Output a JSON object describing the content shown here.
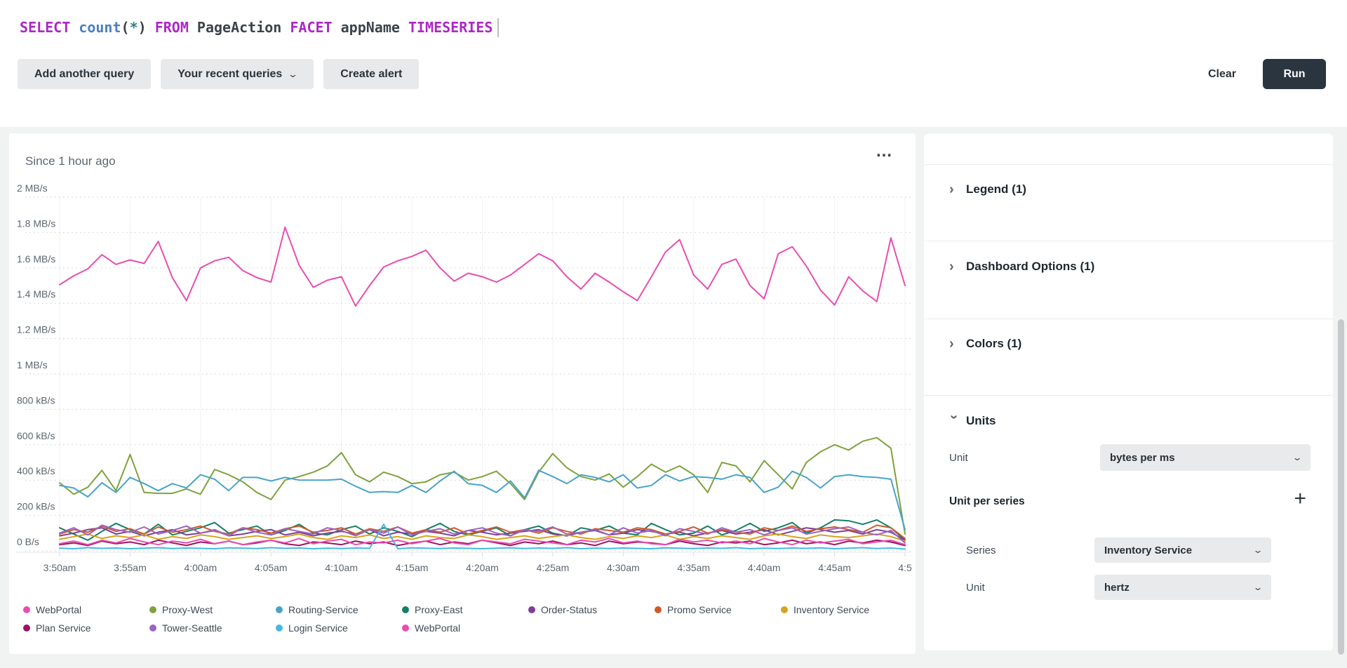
{
  "query": {
    "tokens": [
      {
        "t": "SELECT",
        "c": "keyword"
      },
      {
        "t": " ",
        "c": "plain"
      },
      {
        "t": "count",
        "c": "func"
      },
      {
        "t": "(",
        "c": "plain"
      },
      {
        "t": "*",
        "c": "star"
      },
      {
        "t": ")",
        "c": "plain"
      },
      {
        "t": " ",
        "c": "plain"
      },
      {
        "t": "FROM",
        "c": "keyword"
      },
      {
        "t": " PageAction ",
        "c": "plain"
      },
      {
        "t": "FACET",
        "c": "keyword"
      },
      {
        "t": " appName ",
        "c": "plain"
      },
      {
        "t": "TIMESERIES",
        "c": "keyword"
      }
    ],
    "syntax_colors": {
      "keyword": "#ab28c4",
      "func": "#4d7fc0",
      "star": "#2e8087",
      "plain": "#3c434a"
    }
  },
  "toolbar": {
    "add_query": "Add another query",
    "recent_queries": "Your recent queries",
    "create_alert": "Create alert",
    "clear": "Clear",
    "run": "Run"
  },
  "chart_panel": {
    "time_range": "Since 1 hour ago",
    "menu_glyph": "…"
  },
  "chart_data": {
    "type": "line",
    "title": "Since 1 hour ago",
    "y_unit": "kB/s",
    "ylim": [
      0,
      2000
    ],
    "grid": true,
    "legend_position": "bottom",
    "y_tick_labels": [
      "2 MB/s",
      "1.8 MB/s",
      "1.6 MB/s",
      "1.4 MB/s",
      "1.2 MB/s",
      "1 MB/s",
      "800 kB/s",
      "600 kB/s",
      "400 kB/s",
      "200 kB/s",
      "0 B/s"
    ],
    "x_ticks": [
      "3:50am",
      "3:55am",
      "4:00am",
      "4:05am",
      "4:10am",
      "4:15am",
      "4:20am",
      "4:25am",
      "4:30am",
      "4:35am",
      "4:40am",
      "4:45am",
      "4:5"
    ],
    "series": [
      {
        "name": "WebPortal",
        "color": "#e84db0",
        "values": [
          1505,
          1555,
          1595,
          1675,
          1620,
          1645,
          1625,
          1750,
          1545,
          1415,
          1600,
          1640,
          1660,
          1585,
          1545,
          1520,
          1830,
          1615,
          1490,
          1530,
          1550,
          1385,
          1500,
          1605,
          1640,
          1665,
          1700,
          1600,
          1525,
          1570,
          1550,
          1520,
          1560,
          1620,
          1680,
          1640,
          1550,
          1480,
          1570,
          1520,
          1465,
          1415,
          1550,
          1690,
          1760,
          1560,
          1480,
          1620,
          1650,
          1500,
          1425,
          1680,
          1720,
          1610,
          1475,
          1390,
          1550,
          1470,
          1410,
          1770,
          1500
        ]
      },
      {
        "name": "Proxy-West",
        "color": "#7fa23c",
        "values": [
          385,
          320,
          360,
          455,
          340,
          545,
          330,
          325,
          325,
          350,
          320,
          460,
          430,
          390,
          330,
          290,
          400,
          420,
          445,
          480,
          555,
          430,
          390,
          445,
          420,
          380,
          390,
          430,
          445,
          400,
          420,
          450,
          380,
          290,
          445,
          550,
          470,
          420,
          400,
          435,
          360,
          420,
          490,
          445,
          480,
          430,
          330,
          500,
          480,
          390,
          510,
          430,
          350,
          500,
          560,
          600,
          570,
          620,
          640,
          580,
          95
        ]
      },
      {
        "name": "Routing-Service",
        "color": "#48a4c9",
        "values": [
          370,
          355,
          305,
          385,
          330,
          415,
          380,
          340,
          380,
          355,
          430,
          405,
          340,
          415,
          415,
          395,
          415,
          400,
          400,
          400,
          405,
          365,
          330,
          335,
          330,
          370,
          330,
          395,
          450,
          380,
          370,
          330,
          395,
          300,
          455,
          420,
          380,
          430,
          415,
          390,
          430,
          355,
          370,
          430,
          395,
          420,
          415,
          405,
          430,
          415,
          330,
          360,
          450,
          415,
          355,
          420,
          430,
          420,
          415,
          405,
          120
        ]
      },
      {
        "name": "Proxy-East",
        "color": "#177e66",
        "values": [
          130,
          95,
          60,
          110,
          155,
          120,
          95,
          150,
          90,
          110,
          130,
          160,
          100,
          120,
          140,
          90,
          115,
          150,
          100,
          90,
          120,
          140,
          95,
          130,
          110,
          80,
          120,
          155,
          110,
          90,
          110,
          130,
          85,
          120,
          140,
          100,
          85,
          130,
          115,
          140,
          100,
          90,
          155,
          120,
          90,
          100,
          140,
          90,
          115,
          155,
          110,
          130,
          160,
          100,
          130,
          175,
          170,
          150,
          175,
          130,
          60
        ]
      },
      {
        "name": "Order-Status",
        "color": "#7d3f98",
        "values": [
          85,
          100,
          120,
          130,
          95,
          110,
          85,
          105,
          120,
          90,
          100,
          115,
          85,
          95,
          110,
          120,
          90,
          105,
          85,
          100,
          110,
          95,
          120,
          85,
          105,
          95,
          110,
          100,
          85,
          115,
          105,
          90,
          100,
          110,
          120,
          95,
          85,
          105,
          115,
          90,
          100,
          120,
          110,
          95,
          105,
          85,
          100,
          115,
          95,
          105,
          120,
          90,
          110,
          130,
          120,
          105,
          115,
          95,
          120,
          105,
          60
        ]
      },
      {
        "name": "Promo Service",
        "color": "#cf5a28",
        "values": [
          95,
          120,
          105,
          140,
          110,
          125,
          95,
          135,
          105,
          120,
          140,
          110,
          95,
          130,
          120,
          100,
          125,
          140,
          105,
          115,
          130,
          95,
          125,
          110,
          135,
          100,
          120,
          105,
          130,
          95,
          115,
          135,
          105,
          120,
          100,
          130,
          110,
          95,
          125,
          115,
          105,
          130,
          120,
          95,
          110,
          135,
          100,
          120,
          105,
          95,
          130,
          115,
          140,
          110,
          125,
          135,
          120,
          105,
          145,
          130,
          70
        ]
      },
      {
        "name": "Inventory Service",
        "color": "#d4a41e",
        "values": [
          65,
          80,
          95,
          70,
          85,
          75,
          90,
          65,
          80,
          70,
          90,
          80,
          65,
          75,
          85,
          70,
          80,
          95,
          75,
          65,
          85,
          75,
          90,
          70,
          80,
          65,
          85,
          75,
          70,
          90,
          80,
          65,
          75,
          85,
          70,
          80,
          90,
          75,
          65,
          80,
          70,
          85,
          75,
          90,
          65,
          80,
          70,
          85,
          75,
          65,
          85,
          95,
          80,
          70,
          90,
          80,
          75,
          85,
          95,
          80,
          55
        ]
      },
      {
        "name": "Plan Service",
        "color": "#9d1261",
        "values": [
          35,
          45,
          30,
          55,
          40,
          50,
          35,
          60,
          45,
          30,
          50,
          40,
          55,
          35,
          45,
          60,
          40,
          30,
          50,
          45,
          35,
          55,
          40,
          50,
          30,
          45,
          55,
          35,
          50,
          40,
          60,
          45,
          30,
          50,
          40,
          55,
          35,
          45,
          30,
          55,
          40,
          50,
          45,
          35,
          55,
          40,
          30,
          50,
          45,
          55,
          35,
          45,
          60,
          40,
          50,
          35,
          55,
          45,
          60,
          50,
          30
        ]
      },
      {
        "name": "Tower-Seattle",
        "color": "#9c62c4",
        "values": [
          100,
          130,
          90,
          145,
          120,
          105,
          135,
          95,
          115,
          140,
          100,
          120,
          85,
          130,
          105,
          90,
          125,
          110,
          95,
          130,
          115,
          85,
          120,
          100,
          135,
          90,
          110,
          125,
          95,
          115,
          130,
          100,
          85,
          120,
          110,
          135,
          95,
          105,
          120,
          90,
          130,
          100,
          115,
          85,
          125,
          110,
          95,
          130,
          105,
          120,
          90,
          115,
          130,
          95,
          110,
          125,
          135,
          105,
          90,
          115,
          45
        ]
      },
      {
        "name": "Login Service",
        "color": "#45b8e4",
        "values": [
          15,
          12,
          18,
          14,
          16,
          12,
          15,
          18,
          13,
          16,
          14,
          12,
          17,
          15,
          13,
          18,
          14,
          16,
          12,
          15,
          13,
          16,
          14,
          150,
          12,
          17,
          15,
          13,
          16,
          14,
          12,
          15,
          17,
          13,
          16,
          14,
          18,
          12,
          15,
          13,
          16,
          14,
          12,
          17,
          15,
          13,
          16,
          14,
          18,
          12,
          15,
          13,
          16,
          14,
          17,
          12,
          15,
          18,
          13,
          16,
          10
        ]
      },
      {
        "name": "WebPortal",
        "color": "#e84db0",
        "values": [
          40,
          55,
          35,
          60,
          45,
          70,
          50,
          35,
          55,
          45,
          65,
          40,
          55,
          35,
          50,
          60,
          45,
          70,
          40,
          55,
          65,
          35,
          50,
          45,
          60,
          40,
          55,
          70,
          45,
          35,
          60,
          50,
          40,
          65,
          55,
          45,
          35,
          60,
          50,
          70,
          45,
          55,
          40,
          35,
          65,
          50,
          60,
          45,
          55,
          40,
          70,
          50,
          35,
          60,
          45,
          55,
          65,
          40,
          50,
          60,
          35
        ]
      }
    ]
  },
  "settings_panel": {
    "sections": [
      {
        "label": "Legend (1)"
      },
      {
        "label": "Dashboard Options (1)"
      },
      {
        "label": "Colors (1)"
      },
      {
        "label": "Units"
      }
    ],
    "units": {
      "unit_label": "Unit",
      "unit_value": "bytes per ms",
      "unit_per_series_label": "Unit per series",
      "plus_glyph": "+",
      "series_label": "Series",
      "series_value": "Inventory Service",
      "series_unit_label": "Unit",
      "series_unit_value": "hertz"
    }
  }
}
